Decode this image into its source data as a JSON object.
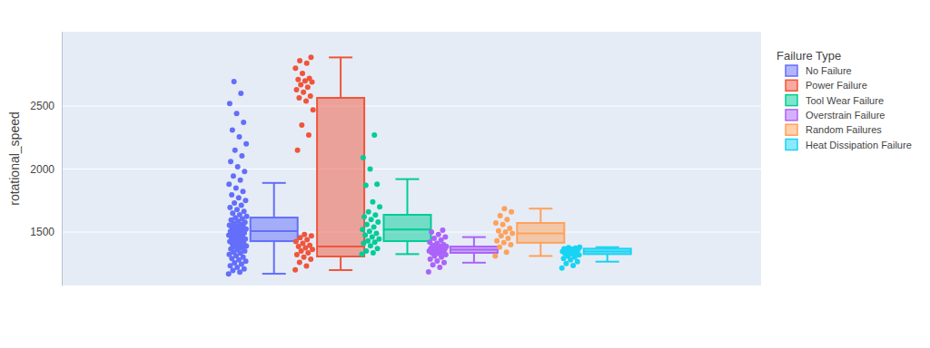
{
  "chart_data": {
    "type": "box",
    "y_label": "rotational_speed",
    "legend_title": "Failure Type",
    "legend": "right",
    "grid": true,
    "tick_labels": "y",
    "ylim": [
      1076,
      3090
    ],
    "yticks": [
      1500,
      2000,
      2500
    ],
    "series": [
      {
        "name": "No Failure",
        "color": "#636efa",
        "q1": 1428,
        "median": 1507,
        "q3": 1615,
        "lowerfence": 1169,
        "upperfence": 1890,
        "values": [
          1168,
          1182,
          1195,
          1208,
          1220,
          1232,
          1245,
          1256,
          1268,
          1279,
          1290,
          1301,
          1312,
          1322,
          1333,
          1341,
          1350,
          1358,
          1366,
          1374,
          1381,
          1389,
          1396,
          1403,
          1410,
          1417,
          1424,
          1431,
          1437,
          1444,
          1450,
          1457,
          1463,
          1470,
          1476,
          1482,
          1488,
          1494,
          1500,
          1505,
          1511,
          1517,
          1523,
          1529,
          1535,
          1541,
          1548,
          1555,
          1562,
          1570,
          1578,
          1586,
          1595,
          1604,
          1614,
          1625,
          1637,
          1650,
          1664,
          1679,
          1695,
          1712,
          1730,
          1750,
          1772,
          1796,
          1822,
          1850,
          1880,
          1912,
          1945,
          1980,
          2018,
          2060,
          2105,
          2150,
          2200,
          2255,
          2310,
          2370,
          2440,
          2520,
          2600,
          2695
        ]
      },
      {
        "name": "Power Failure",
        "color": "#EF553B",
        "q1": 1306,
        "median": 1385,
        "q3": 2565,
        "lowerfence": 1198,
        "upperfence": 2886,
        "values": [
          1200,
          1230,
          1260,
          1285,
          1300,
          1320,
          1335,
          1350,
          1362,
          1375,
          1385,
          1395,
          1410,
          1425,
          1440,
          1455,
          1470,
          1480,
          2150,
          2270,
          2350,
          2470,
          2540,
          2565,
          2580,
          2610,
          2630,
          2650,
          2670,
          2690,
          2700,
          2710,
          2720,
          2760,
          2800,
          2840,
          2860,
          2886
        ]
      },
      {
        "name": "Tool Wear Failure",
        "color": "#00cc96",
        "q1": 1428,
        "median": 1520,
        "q3": 1637,
        "lowerfence": 1325,
        "upperfence": 1920,
        "values": [
          1325,
          1335,
          1350,
          1370,
          1390,
          1410,
          1420,
          1430,
          1445,
          1460,
          1475,
          1490,
          1505,
          1520,
          1540,
          1560,
          1580,
          1600,
          1620,
          1635,
          1660,
          1700,
          1740,
          1870,
          1880,
          2000,
          2090,
          2270
        ]
      },
      {
        "name": "Overstrain Failure",
        "color": "#ab63fa",
        "q1": 1335,
        "median": 1360,
        "q3": 1385,
        "lowerfence": 1257,
        "upperfence": 1460,
        "values": [
          1183,
          1220,
          1240,
          1257,
          1270,
          1285,
          1300,
          1310,
          1320,
          1330,
          1335,
          1340,
          1345,
          1350,
          1355,
          1360,
          1362,
          1365,
          1370,
          1375,
          1380,
          1385,
          1390,
          1395,
          1400,
          1410,
          1420,
          1435,
          1450,
          1460,
          1480,
          1500,
          1515
        ]
      },
      {
        "name": "Random Failures",
        "color": "#FFA15A",
        "q1": 1415,
        "median": 1490,
        "q3": 1572,
        "lowerfence": 1310,
        "upperfence": 1686,
        "values": [
          1310,
          1340,
          1380,
          1400,
          1415,
          1430,
          1450,
          1470,
          1490,
          1500,
          1510,
          1530,
          1560,
          1572,
          1600,
          1630,
          1660,
          1686
        ]
      },
      {
        "name": "Heat Dissipation Failure",
        "color": "#19d3f3",
        "q1": 1325,
        "median": 1345,
        "q3": 1368,
        "lowerfence": 1265,
        "upperfence": 1380,
        "values": [
          1215,
          1235,
          1250,
          1265,
          1280,
          1290,
          1300,
          1310,
          1318,
          1325,
          1330,
          1335,
          1340,
          1345,
          1350,
          1355,
          1360,
          1365,
          1368,
          1372,
          1376,
          1380
        ]
      }
    ]
  }
}
